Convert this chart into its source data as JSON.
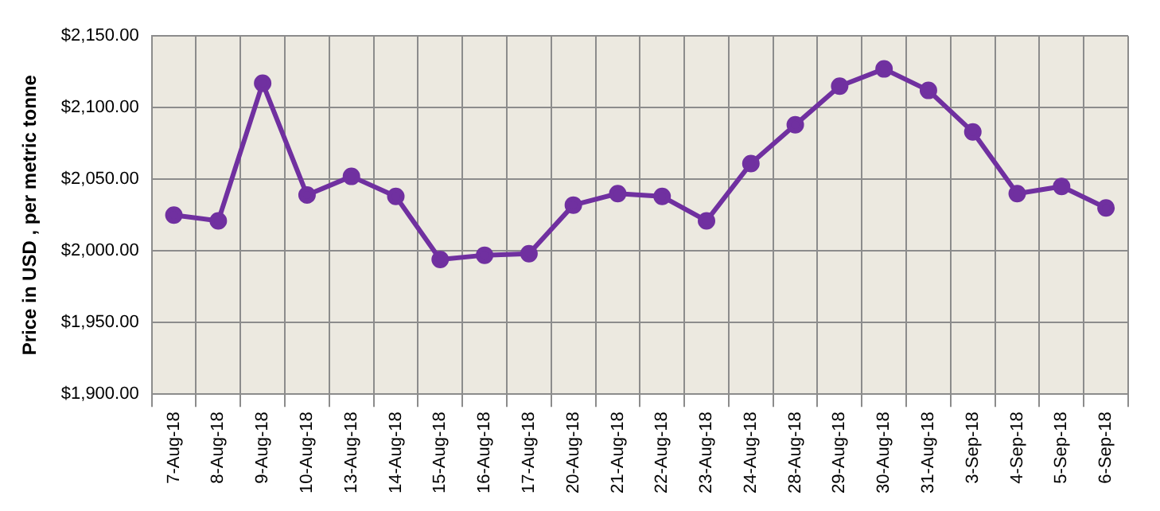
{
  "chart_data": {
    "type": "line",
    "ylabel": "Price in USD , per metric tonne",
    "categories": [
      "7-Aug-18",
      "8-Aug-18",
      "9-Aug-18",
      "10-Aug-18",
      "13-Aug-18",
      "14-Aug-18",
      "15-Aug-18",
      "16-Aug-18",
      "17-Aug-18",
      "20-Aug-18",
      "21-Aug-18",
      "22-Aug-18",
      "23-Aug-18",
      "24-Aug-18",
      "28-Aug-18",
      "29-Aug-18",
      "30-Aug-18",
      "31-Aug-18",
      "3-Sep-18",
      "4-Sep-18",
      "5-Sep-18",
      "6-Sep-18"
    ],
    "series": [
      {
        "color": "#7030a0",
        "values": [
          2025,
          2021,
          2117,
          2039,
          2052,
          2038,
          1994,
          1997,
          1998,
          2032,
          2040,
          2038,
          2021,
          2061,
          2088,
          2115,
          2127,
          2112,
          2083,
          2040,
          2045,
          2030
        ]
      }
    ],
    "ylim": [
      1900,
      2150
    ],
    "yticks": [
      {
        "value": 1900,
        "label": "$1,900.00"
      },
      {
        "value": 1950,
        "label": "$1,950.00"
      },
      {
        "value": 2000,
        "label": "$2,000.00"
      },
      {
        "value": 2050,
        "label": "$2,050.00"
      },
      {
        "value": 2100,
        "label": "$2,100.00"
      },
      {
        "value": 2150,
        "label": "$2,150.00"
      }
    ],
    "grid": true,
    "legend": false,
    "marker": "circle",
    "line_style": "solid"
  }
}
